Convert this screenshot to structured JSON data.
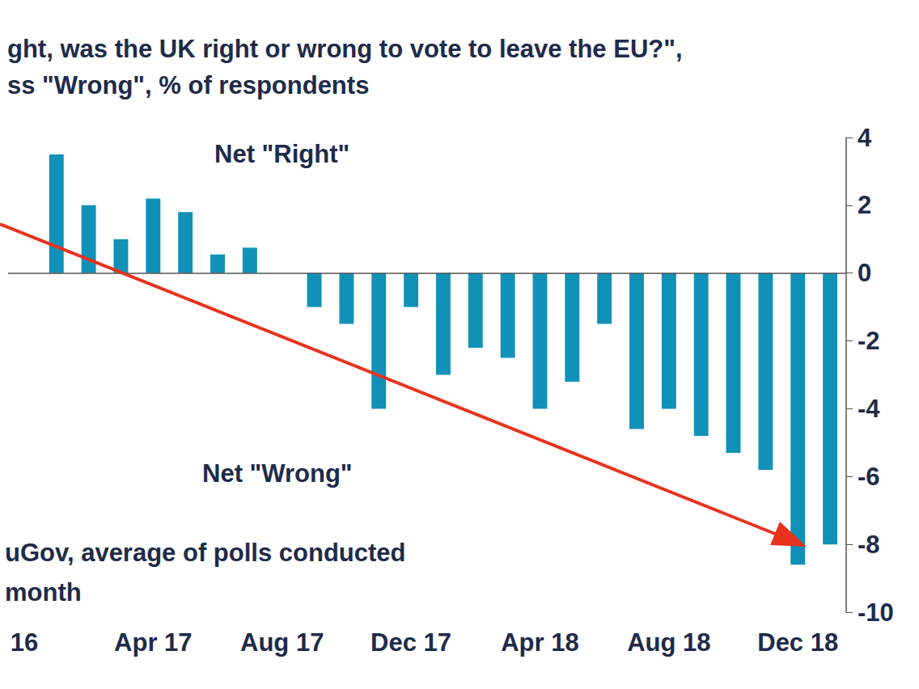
{
  "chart_data": {
    "type": "bar",
    "title": "ght, was the UK right or wrong to vote to leave the EU?\",",
    "subtitle": "ss \"Wrong\", % of respondents",
    "annotations": [
      "Net \"Right\"",
      "Net \"Wrong\"",
      "uGov, average of polls conducted",
      "month"
    ],
    "categories": [
      "16",
      null,
      null,
      null,
      "Apr 17",
      null,
      null,
      null,
      "Aug 17",
      null,
      null,
      null,
      "Dec 17",
      null,
      null,
      null,
      "Apr 18",
      null,
      null,
      null,
      "Aug 18",
      null,
      null,
      null,
      "Dec 18",
      null
    ],
    "values": [
      null,
      3.5,
      2.0,
      1.0,
      2.2,
      1.8,
      0.55,
      0.75,
      null,
      -1.0,
      -1.5,
      -4.0,
      -1.0,
      -3.0,
      -2.2,
      -2.5,
      -4.0,
      -3.2,
      -1.5,
      -4.6,
      -4.0,
      -4.8,
      -5.3,
      -5.8,
      -8.6,
      -8.0
    ],
    "color": "#1291b8",
    "ylim": [
      -10,
      4
    ],
    "yticks": [
      -10,
      -8,
      -6,
      -4,
      -2,
      0,
      2,
      4
    ],
    "grid": false
  }
}
